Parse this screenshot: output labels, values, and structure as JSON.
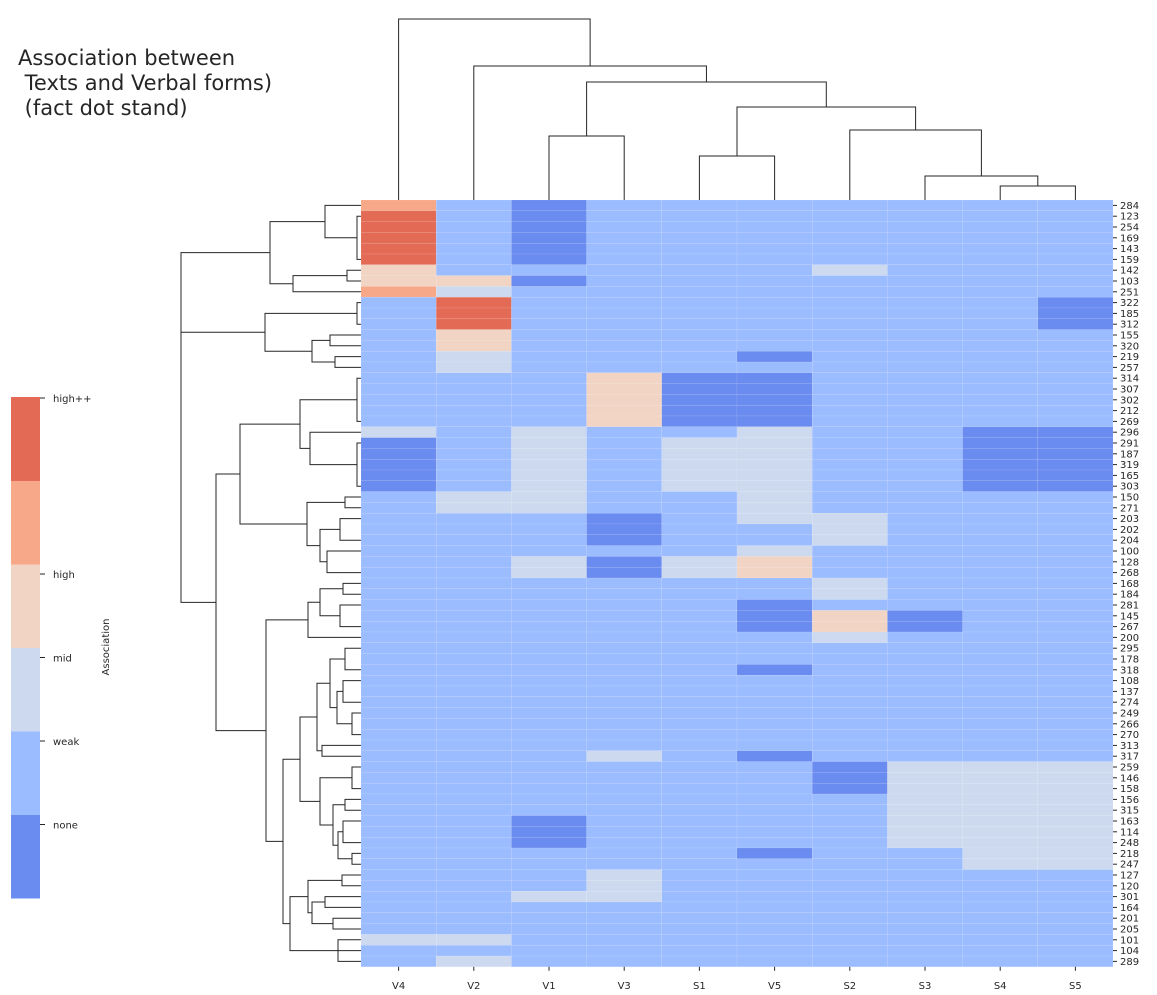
{
  "chart_data": {
    "type": "heatmap",
    "title": "Association between\n Texts and Verbal forms)\n (fact dot stand)",
    "columns": [
      "V4",
      "V2",
      "V1",
      "V3",
      "S1",
      "V5",
      "S2",
      "S3",
      "S4",
      "S5"
    ],
    "rows": [
      "284",
      "123",
      "254",
      "169",
      "143",
      "159",
      "142",
      "103",
      "251",
      "322",
      "185",
      "312",
      "155",
      "320",
      "219",
      "257",
      "314",
      "307",
      "302",
      "212",
      "269",
      "296",
      "291",
      "187",
      "319",
      "165",
      "303",
      "150",
      "271",
      "203",
      "202",
      "204",
      "100",
      "128",
      "268",
      "168",
      "184",
      "281",
      "145",
      "267",
      "200",
      "295",
      "178",
      "318",
      "108",
      "137",
      "274",
      "249",
      "266",
      "270",
      "313",
      "317",
      "259",
      "146",
      "158",
      "156",
      "315",
      "163",
      "114",
      "248",
      "218",
      "247",
      "127",
      "120",
      "301",
      "164",
      "201",
      "205",
      "101",
      "104",
      "289"
    ],
    "values": [
      [
        4,
        1,
        0,
        1,
        1,
        1,
        1,
        1,
        1,
        1
      ],
      [
        5,
        1,
        0,
        1,
        1,
        1,
        1,
        1,
        1,
        1
      ],
      [
        5,
        1,
        0,
        1,
        1,
        1,
        1,
        1,
        1,
        1
      ],
      [
        5,
        1,
        0,
        1,
        1,
        1,
        1,
        1,
        1,
        1
      ],
      [
        5,
        1,
        0,
        1,
        1,
        1,
        1,
        1,
        1,
        1
      ],
      [
        5,
        1,
        0,
        1,
        1,
        1,
        1,
        1,
        1,
        1
      ],
      [
        3,
        1,
        1,
        1,
        1,
        1,
        2,
        1,
        1,
        1
      ],
      [
        3,
        3,
        0,
        1,
        1,
        1,
        1,
        1,
        1,
        1
      ],
      [
        4,
        2,
        1,
        1,
        1,
        1,
        1,
        1,
        1,
        1
      ],
      [
        1,
        5,
        1,
        1,
        1,
        1,
        1,
        1,
        1,
        0
      ],
      [
        1,
        5,
        1,
        1,
        1,
        1,
        1,
        1,
        1,
        0
      ],
      [
        1,
        5,
        1,
        1,
        1,
        1,
        1,
        1,
        1,
        0
      ],
      [
        1,
        3,
        1,
        1,
        1,
        1,
        1,
        1,
        1,
        1
      ],
      [
        1,
        3,
        1,
        1,
        1,
        1,
        1,
        1,
        1,
        1
      ],
      [
        1,
        2,
        1,
        1,
        1,
        0,
        1,
        1,
        1,
        1
      ],
      [
        1,
        2,
        1,
        1,
        1,
        1,
        1,
        1,
        1,
        1
      ],
      [
        1,
        1,
        1,
        3,
        0,
        0,
        1,
        1,
        1,
        1
      ],
      [
        1,
        1,
        1,
        3,
        0,
        0,
        1,
        1,
        1,
        1
      ],
      [
        1,
        1,
        1,
        3,
        0,
        0,
        1,
        1,
        1,
        1
      ],
      [
        1,
        1,
        1,
        3,
        0,
        0,
        1,
        1,
        1,
        1
      ],
      [
        1,
        1,
        1,
        3,
        0,
        0,
        1,
        1,
        1,
        1
      ],
      [
        2,
        1,
        2,
        1,
        1,
        2,
        1,
        1,
        0,
        0
      ],
      [
        0,
        1,
        2,
        1,
        2,
        2,
        1,
        1,
        0,
        0
      ],
      [
        0,
        1,
        2,
        1,
        2,
        2,
        1,
        1,
        0,
        0
      ],
      [
        0,
        1,
        2,
        1,
        2,
        2,
        1,
        1,
        0,
        0
      ],
      [
        0,
        1,
        2,
        1,
        2,
        2,
        1,
        1,
        0,
        0
      ],
      [
        0,
        1,
        2,
        1,
        2,
        2,
        1,
        1,
        0,
        0
      ],
      [
        1,
        2,
        2,
        1,
        1,
        2,
        1,
        1,
        1,
        1
      ],
      [
        1,
        2,
        2,
        1,
        1,
        2,
        1,
        1,
        1,
        1
      ],
      [
        1,
        1,
        1,
        0,
        1,
        2,
        2,
        1,
        1,
        1
      ],
      [
        1,
        1,
        1,
        0,
        1,
        1,
        2,
        1,
        1,
        1
      ],
      [
        1,
        1,
        1,
        0,
        1,
        1,
        2,
        1,
        1,
        1
      ],
      [
        1,
        1,
        1,
        1,
        1,
        2,
        1,
        1,
        1,
        1
      ],
      [
        1,
        1,
        2,
        0,
        2,
        3,
        1,
        1,
        1,
        1
      ],
      [
        1,
        1,
        2,
        0,
        2,
        3,
        1,
        1,
        1,
        1
      ],
      [
        1,
        1,
        1,
        1,
        1,
        1,
        2,
        1,
        1,
        1
      ],
      [
        1,
        1,
        1,
        1,
        1,
        1,
        2,
        1,
        1,
        1
      ],
      [
        1,
        1,
        1,
        1,
        1,
        0,
        1,
        1,
        1,
        1
      ],
      [
        1,
        1,
        1,
        1,
        1,
        0,
        3,
        0,
        1,
        1
      ],
      [
        1,
        1,
        1,
        1,
        1,
        0,
        3,
        0,
        1,
        1
      ],
      [
        1,
        1,
        1,
        1,
        1,
        1,
        2,
        1,
        1,
        1
      ],
      [
        1,
        1,
        1,
        1,
        1,
        1,
        1,
        1,
        1,
        1
      ],
      [
        1,
        1,
        1,
        1,
        1,
        1,
        1,
        1,
        1,
        1
      ],
      [
        1,
        1,
        1,
        1,
        1,
        0,
        1,
        1,
        1,
        1
      ],
      [
        1,
        1,
        1,
        1,
        1,
        1,
        1,
        1,
        1,
        1
      ],
      [
        1,
        1,
        1,
        1,
        1,
        1,
        1,
        1,
        1,
        1
      ],
      [
        1,
        1,
        1,
        1,
        1,
        1,
        1,
        1,
        1,
        1
      ],
      [
        1,
        1,
        1,
        1,
        1,
        1,
        1,
        1,
        1,
        1
      ],
      [
        1,
        1,
        1,
        1,
        1,
        1,
        1,
        1,
        1,
        1
      ],
      [
        1,
        1,
        1,
        1,
        1,
        1,
        1,
        1,
        1,
        1
      ],
      [
        1,
        1,
        1,
        1,
        1,
        1,
        1,
        1,
        1,
        1
      ],
      [
        1,
        1,
        1,
        2,
        1,
        0,
        1,
        1,
        1,
        1
      ],
      [
        1,
        1,
        1,
        1,
        1,
        1,
        0,
        2,
        2,
        2
      ],
      [
        1,
        1,
        1,
        1,
        1,
        1,
        0,
        2,
        2,
        2
      ],
      [
        1,
        1,
        1,
        1,
        1,
        1,
        0,
        2,
        2,
        2
      ],
      [
        1,
        1,
        1,
        1,
        1,
        1,
        1,
        2,
        2,
        2
      ],
      [
        1,
        1,
        1,
        1,
        1,
        1,
        1,
        2,
        2,
        2
      ],
      [
        1,
        1,
        0,
        1,
        1,
        1,
        1,
        2,
        2,
        2
      ],
      [
        1,
        1,
        0,
        1,
        1,
        1,
        1,
        2,
        2,
        2
      ],
      [
        1,
        1,
        0,
        1,
        1,
        1,
        1,
        2,
        2,
        2
      ],
      [
        1,
        1,
        1,
        1,
        1,
        0,
        1,
        1,
        2,
        2
      ],
      [
        1,
        1,
        1,
        1,
        1,
        1,
        1,
        1,
        2,
        2
      ],
      [
        1,
        1,
        1,
        2,
        1,
        1,
        1,
        1,
        1,
        1
      ],
      [
        1,
        1,
        1,
        2,
        1,
        1,
        1,
        1,
        1,
        1
      ],
      [
        1,
        1,
        2,
        2,
        1,
        1,
        1,
        1,
        1,
        1
      ],
      [
        1,
        1,
        1,
        1,
        1,
        1,
        1,
        1,
        1,
        1
      ],
      [
        1,
        1,
        1,
        1,
        1,
        1,
        1,
        1,
        1,
        1
      ],
      [
        1,
        1,
        1,
        1,
        1,
        1,
        1,
        1,
        1,
        1
      ],
      [
        2,
        2,
        1,
        1,
        1,
        1,
        1,
        1,
        1,
        1
      ],
      [
        1,
        1,
        1,
        1,
        1,
        1,
        1,
        1,
        1,
        1
      ],
      [
        1,
        2,
        1,
        1,
        1,
        1,
        1,
        1,
        1,
        1
      ]
    ],
    "colorbar": {
      "label": "Association",
      "levels": [
        "",
        "none",
        "weak",
        "mid",
        "high",
        "high++"
      ],
      "colors": [
        "#6a8bef",
        "#9bbcff",
        "#cdd9ef",
        "#f1d4c4",
        "#f7a889",
        "#e36b55"
      ]
    },
    "grid": false,
    "col_dendrogram": true,
    "row_dendrogram": true
  }
}
